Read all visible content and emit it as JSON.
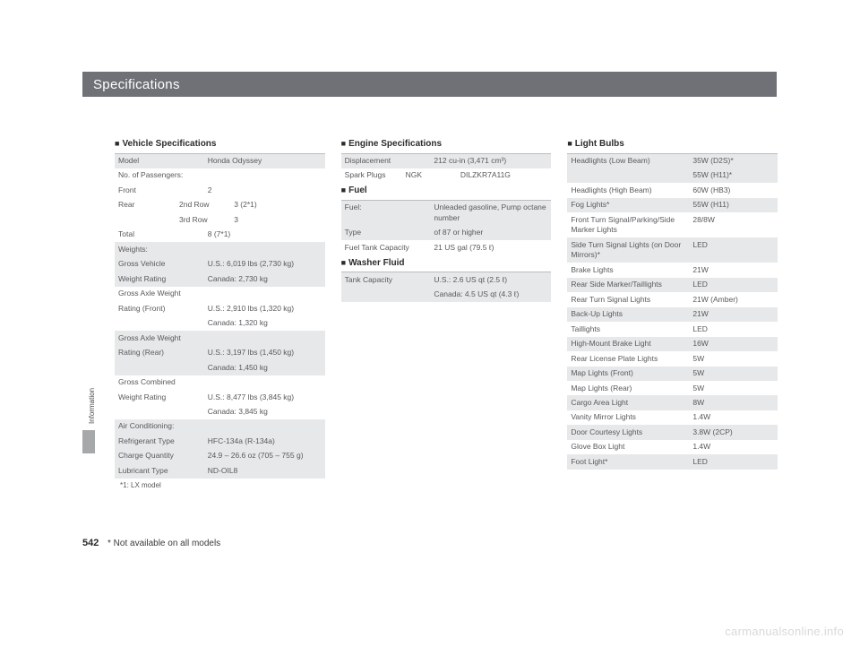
{
  "chapter_title": "Specifications",
  "sidebar_label": "Information",
  "page_number": "542",
  "bottom_note": "* Not available on all models",
  "watermark": "carmanualsonline.info",
  "square": "■",
  "col1": {
    "title": "Vehicle Specifications",
    "rows": [
      {
        "shade": true,
        "l": "Model",
        "v": "Honda Odyssey"
      },
      {
        "shade": false,
        "l": "No. of Passengers:",
        "v": ""
      },
      {
        "shade": false,
        "l": "Front",
        "v": "2"
      },
      {
        "shade": false,
        "l2": "Rear",
        "m": "2nd Row",
        "v": "3 (2*1)"
      },
      {
        "shade": false,
        "l2": "",
        "m": "3rd Row",
        "v": "3"
      },
      {
        "shade": false,
        "l": "Total",
        "v": "8 (7*1)"
      },
      {
        "shade": true,
        "l": "Weights:",
        "v": ""
      },
      {
        "shade": true,
        "l": "Gross Vehicle",
        "v": "U.S.: 6,019 lbs (2,730 kg)"
      },
      {
        "shade": true,
        "l": "Weight Rating",
        "v": "Canada: 2,730 kg"
      },
      {
        "shade": false,
        "l": "Gross Axle Weight",
        "v": ""
      },
      {
        "shade": false,
        "l": "Rating (Front)",
        "v": "U.S.: 2,910 lbs (1,320 kg)"
      },
      {
        "shade": false,
        "l": "",
        "v": "Canada: 1,320 kg"
      },
      {
        "shade": true,
        "l": "Gross Axle Weight",
        "v": ""
      },
      {
        "shade": true,
        "l": "Rating (Rear)",
        "v": "U.S.: 3,197 lbs (1,450 kg)"
      },
      {
        "shade": true,
        "l": "",
        "v": "Canada: 1,450 kg"
      },
      {
        "shade": false,
        "l": "Gross Combined",
        "v": ""
      },
      {
        "shade": false,
        "l": "Weight Rating",
        "v": "U.S.: 8,477 lbs (3,845 kg)"
      },
      {
        "shade": false,
        "l": "",
        "v": "Canada: 3,845 kg"
      },
      {
        "shade": true,
        "l": "Air Conditioning:",
        "v": ""
      },
      {
        "shade": true,
        "l": "Refrigerant Type",
        "v": "HFC-134a (R-134a)"
      },
      {
        "shade": true,
        "l": "Charge Quantity",
        "v": "24.9 – 26.6 oz (705 – 755 g)"
      },
      {
        "shade": true,
        "l": "Lubricant Type",
        "v": "ND-OIL8"
      }
    ],
    "footnote": "*1:  LX model"
  },
  "col2": {
    "s1_title": "Engine Specifications",
    "s1_rows": [
      {
        "shade": true,
        "l": "Displacement",
        "v": "212 cu-in (3,471 cm³)"
      },
      {
        "shade": false,
        "l2": "Spark Plugs",
        "m": "NGK",
        "v": "DILZKR7A11G"
      }
    ],
    "s2_title": "Fuel",
    "s2_rows": [
      {
        "shade": true,
        "l": "Fuel:",
        "v": "Unleaded gasoline, Pump octane number"
      },
      {
        "shade": true,
        "l": "Type",
        "v": "of 87 or higher"
      },
      {
        "shade": false,
        "l": "Fuel Tank Capacity",
        "v": "21 US gal (79.5 ℓ)"
      }
    ],
    "s3_title": "Washer Fluid",
    "s3_rows": [
      {
        "shade": true,
        "l": "Tank Capacity",
        "v": "U.S.: 2.6 US qt (2.5 ℓ)"
      },
      {
        "shade": true,
        "l": "",
        "v": "Canada: 4.5 US qt (4.3 ℓ)"
      }
    ]
  },
  "col3": {
    "title": "Light Bulbs",
    "rows": [
      {
        "shade": true,
        "l": "Headlights (Low Beam)",
        "v": "35W (D2S)*"
      },
      {
        "shade": true,
        "l": "",
        "v": "55W (H11)*"
      },
      {
        "shade": false,
        "l": "Headlights (High Beam)",
        "v": "60W (HB3)"
      },
      {
        "shade": true,
        "l": "Fog Lights*",
        "v": "55W (H11)"
      },
      {
        "shade": false,
        "l": "Front Turn Signal/Parking/Side Marker Lights",
        "v": "28/8W"
      },
      {
        "shade": true,
        "l": "Side Turn Signal Lights (on Door Mirrors)*",
        "v": "LED"
      },
      {
        "shade": false,
        "l": "Brake Lights",
        "v": "21W"
      },
      {
        "shade": true,
        "l": "Rear Side Marker/Taillights",
        "v": "LED"
      },
      {
        "shade": false,
        "l": "Rear Turn Signal Lights",
        "v": "21W (Amber)"
      },
      {
        "shade": true,
        "l": "Back-Up Lights",
        "v": "21W"
      },
      {
        "shade": false,
        "l": "Taillights",
        "v": "LED"
      },
      {
        "shade": true,
        "l": "High-Mount Brake Light",
        "v": "16W"
      },
      {
        "shade": false,
        "l": "Rear License Plate Lights",
        "v": "5W"
      },
      {
        "shade": true,
        "l": "Map Lights (Front)",
        "v": "5W"
      },
      {
        "shade": false,
        "l": "Map Lights (Rear)",
        "v": "5W"
      },
      {
        "shade": true,
        "l": "Cargo Area Light",
        "v": "8W"
      },
      {
        "shade": false,
        "l": "Vanity Mirror Lights",
        "v": "1.4W"
      },
      {
        "shade": true,
        "l": "Door Courtesy Lights",
        "v": "3.8W (2CP)"
      },
      {
        "shade": false,
        "l": "Glove Box Light",
        "v": "1.4W"
      },
      {
        "shade": true,
        "l": "Foot Light*",
        "v": "LED"
      }
    ]
  }
}
